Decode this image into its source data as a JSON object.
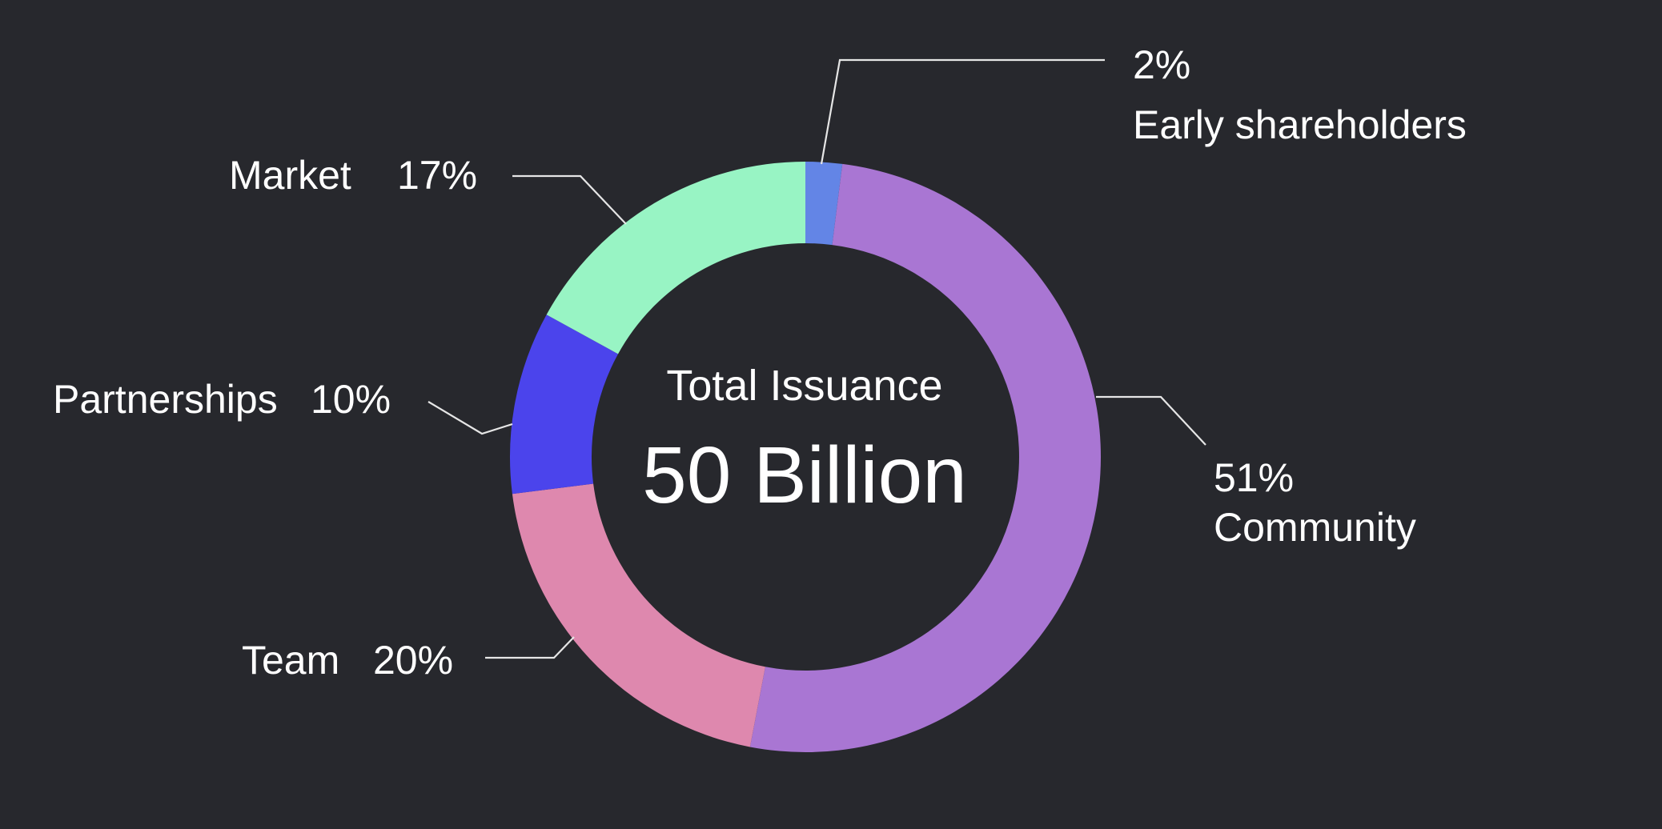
{
  "chart_data": {
    "type": "pie",
    "variant": "donut",
    "center_title": "Total Issuance",
    "center_value": "50 Billion",
    "start": "top",
    "direction": "clockwise",
    "slices": [
      {
        "name": "Early shareholders",
        "value": 2,
        "label": "2%",
        "color": "#6385e6"
      },
      {
        "name": "Community",
        "value": 51,
        "label": "51%",
        "color": "#a976d3"
      },
      {
        "name": "Team",
        "value": 20,
        "label": "20%",
        "color": "#de88ae"
      },
      {
        "name": "Partnerships",
        "value": 10,
        "label": "10%",
        "color": "#4b44ec"
      },
      {
        "name": "Market",
        "value": 17,
        "label": "17%",
        "color": "#98f4c4"
      }
    ]
  },
  "colors": {
    "background": "#27282d",
    "text": "#ffffff",
    "leader": "#e6e6e6"
  }
}
